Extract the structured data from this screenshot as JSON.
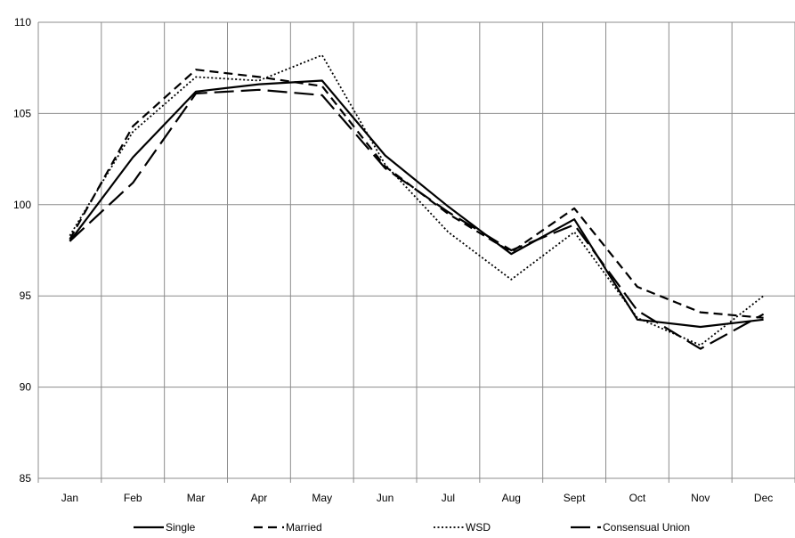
{
  "chart_data": {
    "type": "line",
    "categories": [
      "Jan",
      "Feb",
      "Mar",
      "Apr",
      "May",
      "Jun",
      "Jul",
      "Aug",
      "Sept",
      "Oct",
      "Nov",
      "Dec"
    ],
    "ylim": [
      85,
      110
    ],
    "yticks": [
      85,
      90,
      95,
      100,
      105,
      110
    ],
    "grid": true,
    "legend_position": "bottom",
    "series": [
      {
        "name": "Single",
        "style": "solid",
        "values": [
          98.0,
          102.6,
          106.2,
          106.6,
          106.8,
          102.7,
          99.9,
          97.3,
          99.2,
          93.7,
          93.3,
          93.7
        ]
      },
      {
        "name": "Married",
        "style": "dashed",
        "values": [
          98.1,
          104.3,
          107.4,
          107.0,
          106.5,
          102.1,
          99.5,
          97.4,
          99.8,
          95.5,
          94.1,
          93.8
        ]
      },
      {
        "name": "WSD",
        "style": "dotted",
        "values": [
          98.3,
          104.0,
          107.0,
          106.8,
          108.2,
          102.2,
          98.5,
          95.9,
          98.5,
          93.8,
          92.3,
          95.0
        ]
      },
      {
        "name": "Consensual Union",
        "style": "longdash",
        "values": [
          98.0,
          101.2,
          106.1,
          106.3,
          106.0,
          102.0,
          99.6,
          97.5,
          98.9,
          94.2,
          92.1,
          94.0
        ]
      }
    ]
  }
}
